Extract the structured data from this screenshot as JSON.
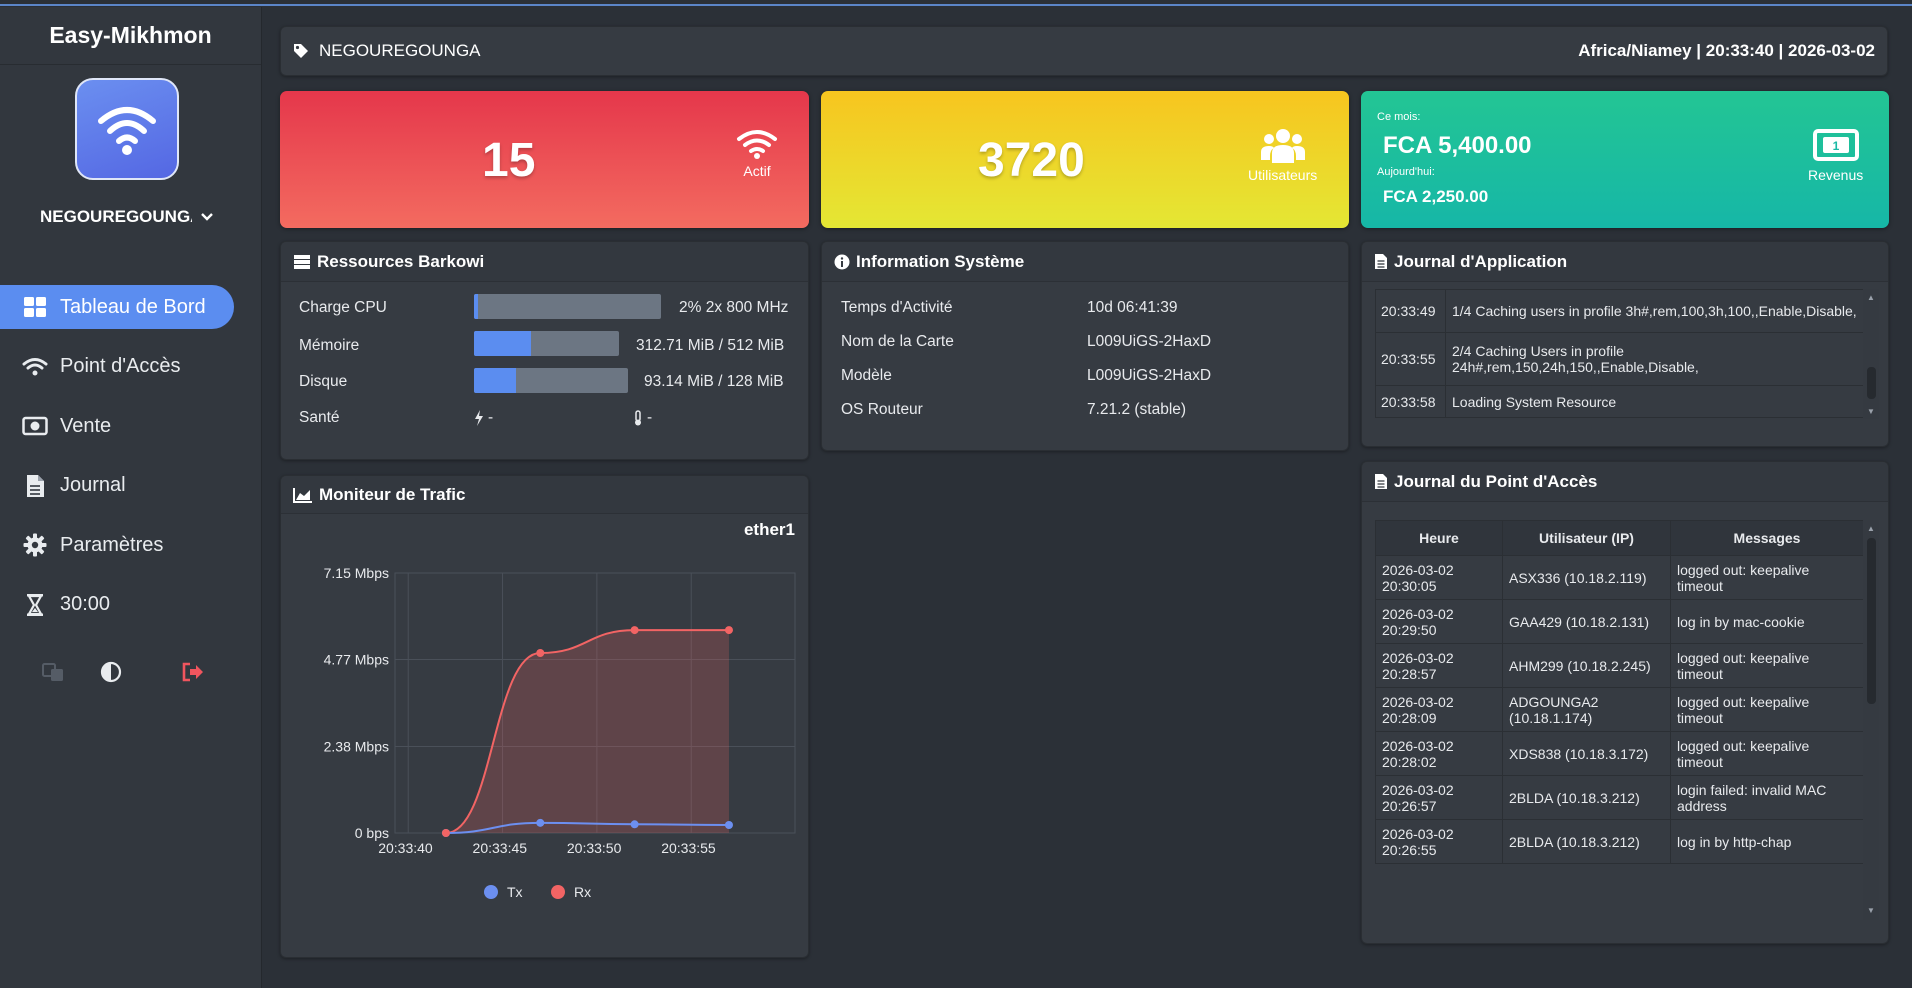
{
  "app": {
    "brand": "Easy-Mikhmon",
    "router_name": "NEGOUREGOUNGA"
  },
  "sidebar": {
    "items": [
      {
        "label": "Tableau de Bord",
        "icon": "dashboard-icon",
        "active": true
      },
      {
        "label": "Point d'Accès",
        "icon": "wifi-icon"
      },
      {
        "label": "Vente",
        "icon": "money-icon"
      },
      {
        "label": "Journal",
        "icon": "document-icon"
      },
      {
        "label": "Paramètres",
        "icon": "gear-icon"
      },
      {
        "label": "30:00",
        "icon": "hourglass-icon"
      }
    ],
    "tools": [
      "language-icon",
      "contrast-icon",
      "logout-icon"
    ]
  },
  "header": {
    "name": "NEGOUREGOUNGA",
    "datetime": "Africa/Niamey | 20:33:40 | 2026-03-02"
  },
  "cards": {
    "active": {
      "value": "15",
      "label": "Actif"
    },
    "users": {
      "value": "3720",
      "label": "Utilisateurs"
    },
    "revenue": {
      "month_label": "Ce mois:",
      "month_value": "FCA 5,400.00",
      "today_label": "Aujourd'hui:",
      "today_value": "FCA 2,250.00",
      "label": "Revenus"
    }
  },
  "resources": {
    "title": "Ressources Barkowi",
    "cpu": {
      "label": "Charge CPU",
      "value": "2% 2x 800 MHz",
      "fraction": 0.02
    },
    "memory": {
      "label": "Mémoire",
      "value": "312.71 MiB / 512 MiB",
      "fraction": 0.39
    },
    "disk": {
      "label": "Disque",
      "value": "93.14 MiB / 128 MiB",
      "fraction": 0.27
    },
    "health": {
      "label": "Santé",
      "voltage": "-",
      "temperature": "-"
    }
  },
  "system": {
    "title": "Information Système",
    "rows": [
      {
        "label": "Temps d'Activité",
        "value": "10d 06:41:39"
      },
      {
        "label": "Nom de la Carte",
        "value": "L009UiGS-2HaxD"
      },
      {
        "label": "Modèle",
        "value": "L009UiGS-2HaxD"
      },
      {
        "label": "OS Routeur",
        "value": "7.21.2 (stable)"
      }
    ]
  },
  "app_log": {
    "title": "Journal d'Application",
    "rows": [
      {
        "time": "20:33:49",
        "message": "1/4 Caching users in profile 3h#,rem,100,3h,100,,Enable,Disable,"
      },
      {
        "time": "20:33:55",
        "message": "2/4 Caching Users in profile 24h#,rem,150,24h,150,,Enable,Disable,"
      },
      {
        "time": "20:33:58",
        "message": "Loading System Resource"
      }
    ]
  },
  "hotspot_log": {
    "title": "Journal du Point d'Accès",
    "headers": [
      "Heure",
      "Utilisateur (IP)",
      "Messages"
    ],
    "rows": [
      {
        "date": "2026-03-02",
        "time": "20:30:05",
        "user": "ASX336 (10.18.2.119)",
        "message": "logged out: keepalive timeout"
      },
      {
        "date": "2026-03-02",
        "time": "20:29:50",
        "user": "GAA429 (10.18.2.131)",
        "message": "log in by mac-cookie"
      },
      {
        "date": "2026-03-02",
        "time": "20:28:57",
        "user": "AHM299 (10.18.2.245)",
        "message": "logged out: keepalive timeout"
      },
      {
        "date": "2026-03-02",
        "time": "20:28:09",
        "user": "ADGOUNGA2 (10.18.1.174)",
        "message": "logged out: keepalive timeout"
      },
      {
        "date": "2026-03-02",
        "time": "20:28:02",
        "user": "XDS838 (10.18.3.172)",
        "message": "logged out: keepalive timeout"
      },
      {
        "date": "2026-03-02",
        "time": "20:26:57",
        "user": "2BLDA (10.18.3.212)",
        "message": "login failed: invalid MAC address"
      },
      {
        "date": "2026-03-02",
        "time": "20:26:55",
        "user": "2BLDA (10.18.3.212)",
        "message": "log in by http-chap"
      }
    ]
  },
  "traffic": {
    "title": "Moniteur de Trafic",
    "interface": "ether1"
  },
  "chart_data": {
    "type": "line",
    "title": "ether1",
    "x": [
      "20:33:42",
      "20:33:47",
      "20:33:52",
      "20:33:57"
    ],
    "x_ticks": [
      "20:33:40",
      "20:33:45",
      "20:33:50",
      "20:33:55"
    ],
    "y_ticks": [
      "0 bps",
      "2.38 Mbps",
      "4.77 Mbps",
      "7.15 Mbps"
    ],
    "ylim": [
      0,
      7.15
    ],
    "series": [
      {
        "name": "Tx",
        "values": [
          0,
          0.28,
          0.24,
          0.22
        ],
        "color": "#6c8ff0"
      },
      {
        "name": "Rx",
        "values": [
          0,
          4.95,
          5.58,
          5.58
        ],
        "color": "#f26464"
      }
    ],
    "legend": "bottom",
    "grid": true
  }
}
